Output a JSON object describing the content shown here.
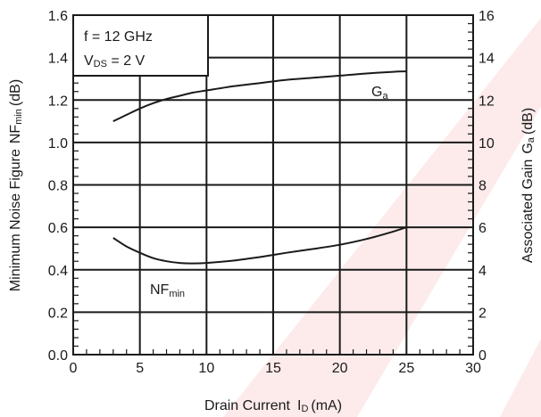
{
  "chart_data": {
    "type": "line",
    "x_axis": {
      "label_main": "Drain Current",
      "label_symbol": "I",
      "label_symbol_sub": "D",
      "label_unit": "(mA)",
      "range": [
        0,
        30
      ],
      "ticks": [
        0,
        5,
        10,
        15,
        20,
        25,
        30
      ],
      "tick_labels": [
        "0",
        "5",
        "10",
        "15",
        "20",
        "25",
        "30"
      ]
    },
    "y_left": {
      "label_main": "Minimum Noise Figure",
      "label_symbol": "NF",
      "label_symbol_sub": "min",
      "label_unit": "(dB)",
      "range": [
        0,
        1.6
      ],
      "ticks": [
        0,
        0.2,
        0.4,
        0.6,
        0.8,
        1.0,
        1.2,
        1.4,
        1.6
      ],
      "tick_labels": [
        "0.0",
        "0.2",
        "0.4",
        "0.6",
        "0.8",
        "1.0",
        "1.2",
        "1.4",
        "1.6"
      ]
    },
    "y_right": {
      "label_main": "Associated Gain",
      "label_symbol": "G",
      "label_symbol_sub": "a",
      "label_unit": "(dB)",
      "range": [
        0,
        16
      ],
      "ticks": [
        0,
        2,
        4,
        6,
        8,
        10,
        12,
        14,
        16
      ],
      "tick_labels": [
        "0",
        "2",
        "4",
        "6",
        "8",
        "10",
        "12",
        "14",
        "16"
      ]
    },
    "conditions": {
      "line1": "f = 12 GHz",
      "line2_symbol": "V",
      "line2_sub": "DS",
      "line2_rest": " = 2 V"
    },
    "grid": true,
    "series": [
      {
        "name": "NF",
        "name_sub": "min",
        "axis": "left",
        "x": [
          3,
          4,
          5,
          6,
          7,
          8,
          9,
          10,
          12,
          14,
          16,
          18,
          20,
          22,
          24,
          25
        ],
        "y": [
          0.55,
          0.51,
          0.48,
          0.455,
          0.44,
          0.432,
          0.43,
          0.432,
          0.443,
          0.46,
          0.48,
          0.498,
          0.518,
          0.545,
          0.58,
          0.6
        ]
      },
      {
        "name": "G",
        "name_sub": "a",
        "axis": "right",
        "x": [
          3,
          4,
          5,
          6,
          7,
          8,
          9,
          10,
          12,
          14,
          16,
          18,
          20,
          22,
          24,
          25
        ],
        "y": [
          11.0,
          11.3,
          11.6,
          11.85,
          12.05,
          12.2,
          12.35,
          12.45,
          12.65,
          12.8,
          12.95,
          13.05,
          13.15,
          13.25,
          13.33,
          13.35
        ]
      }
    ]
  }
}
